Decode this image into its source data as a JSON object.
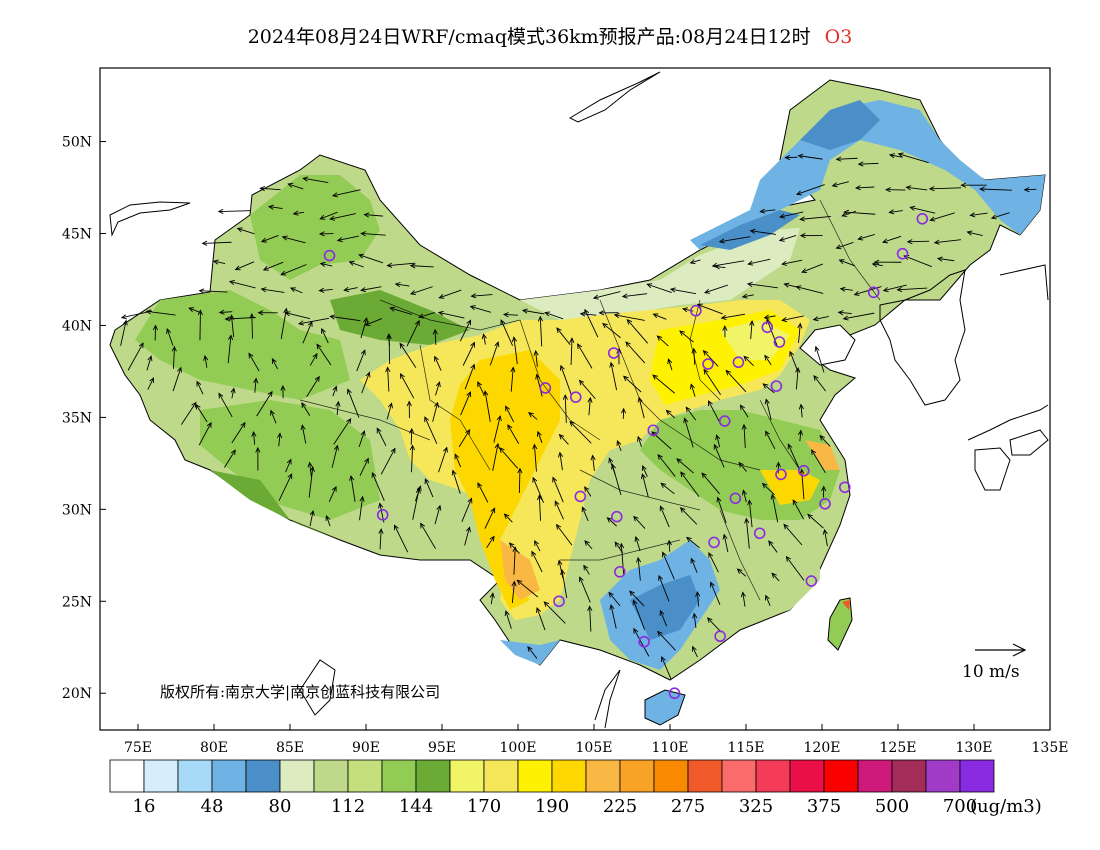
{
  "title": {
    "text": "2024年08月24日WRF/cmaq模式36km预报产品:08月24日12时",
    "species": "O3",
    "species_color": "#e0302a"
  },
  "map": {
    "lat_labels": [
      "50N",
      "45N",
      "40N",
      "35N",
      "30N",
      "25N",
      "20N"
    ],
    "lat_values": [
      50,
      45,
      40,
      35,
      30,
      25,
      20
    ],
    "lon_labels": [
      "75E",
      "80E",
      "85E",
      "90E",
      "95E",
      "100E",
      "105E",
      "110E",
      "115E",
      "120E",
      "125E",
      "130E",
      "135E"
    ],
    "lon_values": [
      75,
      80,
      85,
      90,
      95,
      100,
      105,
      110,
      115,
      120,
      125,
      130,
      135
    ],
    "lon_range": [
      72.5,
      135
    ],
    "lat_range": [
      18,
      54
    ],
    "copyright": "版权所有:南京大学|南京创蓝科技有限公司",
    "wind_reference": "10 m/s",
    "site_marker_color": "#8a2be2"
  },
  "colorbar": {
    "colors": [
      "#ffffff",
      "#d6eefc",
      "#a6daf6",
      "#6fb3e4",
      "#4a8fc8",
      "#ddecc0",
      "#bed98a",
      "#c4e07c",
      "#93cc55",
      "#6aaa35",
      "#f0f466",
      "#f5e65a",
      "#fff200",
      "#fcd800",
      "#f8b843",
      "#f8a325",
      "#f88a00",
      "#f05a2a",
      "#fb6b6b",
      "#f43b58",
      "#eb0f47",
      "#fc0000",
      "#cc197a",
      "#a32d58",
      "#a03cc8",
      "#8a2be2"
    ],
    "labels": [
      "16",
      "48",
      "80",
      "112",
      "144",
      "170",
      "190",
      "225",
      "275",
      "325",
      "375",
      "500",
      "700"
    ],
    "unit": "(ug/m3)"
  }
}
